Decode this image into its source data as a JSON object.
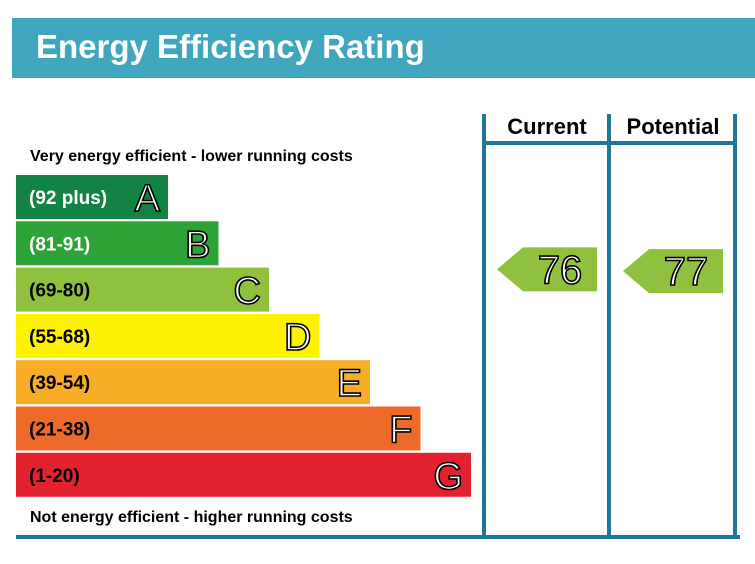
{
  "header": {
    "title": "Energy Efficiency Rating",
    "bg_color": "#3FA6BD"
  },
  "captions": {
    "top": "Very energy efficient - lower running costs",
    "bottom": "Not energy efficient - higher running costs"
  },
  "columns": {
    "current": "Current",
    "potential": "Potential",
    "frame_color": "#1F7799"
  },
  "chart_data": {
    "type": "bar",
    "title": "Energy Efficiency Rating",
    "categories": [
      "(92 plus)",
      "(81-91)",
      "(69-80)",
      "(55-68)",
      "(39-54)",
      "(21-38)",
      "(1-20)"
    ],
    "bands": [
      {
        "range": "(92 plus)",
        "letter": "A",
        "min": 92,
        "max": 100,
        "color": "#128342",
        "text_color": "#ffffff"
      },
      {
        "range": "(81-91)",
        "letter": "B",
        "min": 81,
        "max": 91,
        "color": "#2DA337",
        "text_color": "#ffffff"
      },
      {
        "range": "(69-80)",
        "letter": "C",
        "min": 69,
        "max": 80,
        "color": "#90C13E",
        "text_color": "#000000"
      },
      {
        "range": "(55-68)",
        "letter": "D",
        "min": 55,
        "max": 68,
        "color": "#FFF200",
        "text_color": "#000000"
      },
      {
        "range": "(39-54)",
        "letter": "E",
        "min": 39,
        "max": 54,
        "color": "#F7AE26",
        "text_color": "#000000"
      },
      {
        "range": "(21-38)",
        "letter": "F",
        "min": 21,
        "max": 38,
        "color": "#EE6A2A",
        "text_color": "#000000"
      },
      {
        "range": "(1-20)",
        "letter": "G",
        "min": 1,
        "max": 20,
        "color": "#E3222F",
        "text_color": "#000000"
      }
    ],
    "series": [
      {
        "name": "Current",
        "value": 76,
        "band": "C",
        "color": "#90C13E"
      },
      {
        "name": "Potential",
        "value": 77,
        "band": "C",
        "color": "#90C13E"
      }
    ]
  }
}
